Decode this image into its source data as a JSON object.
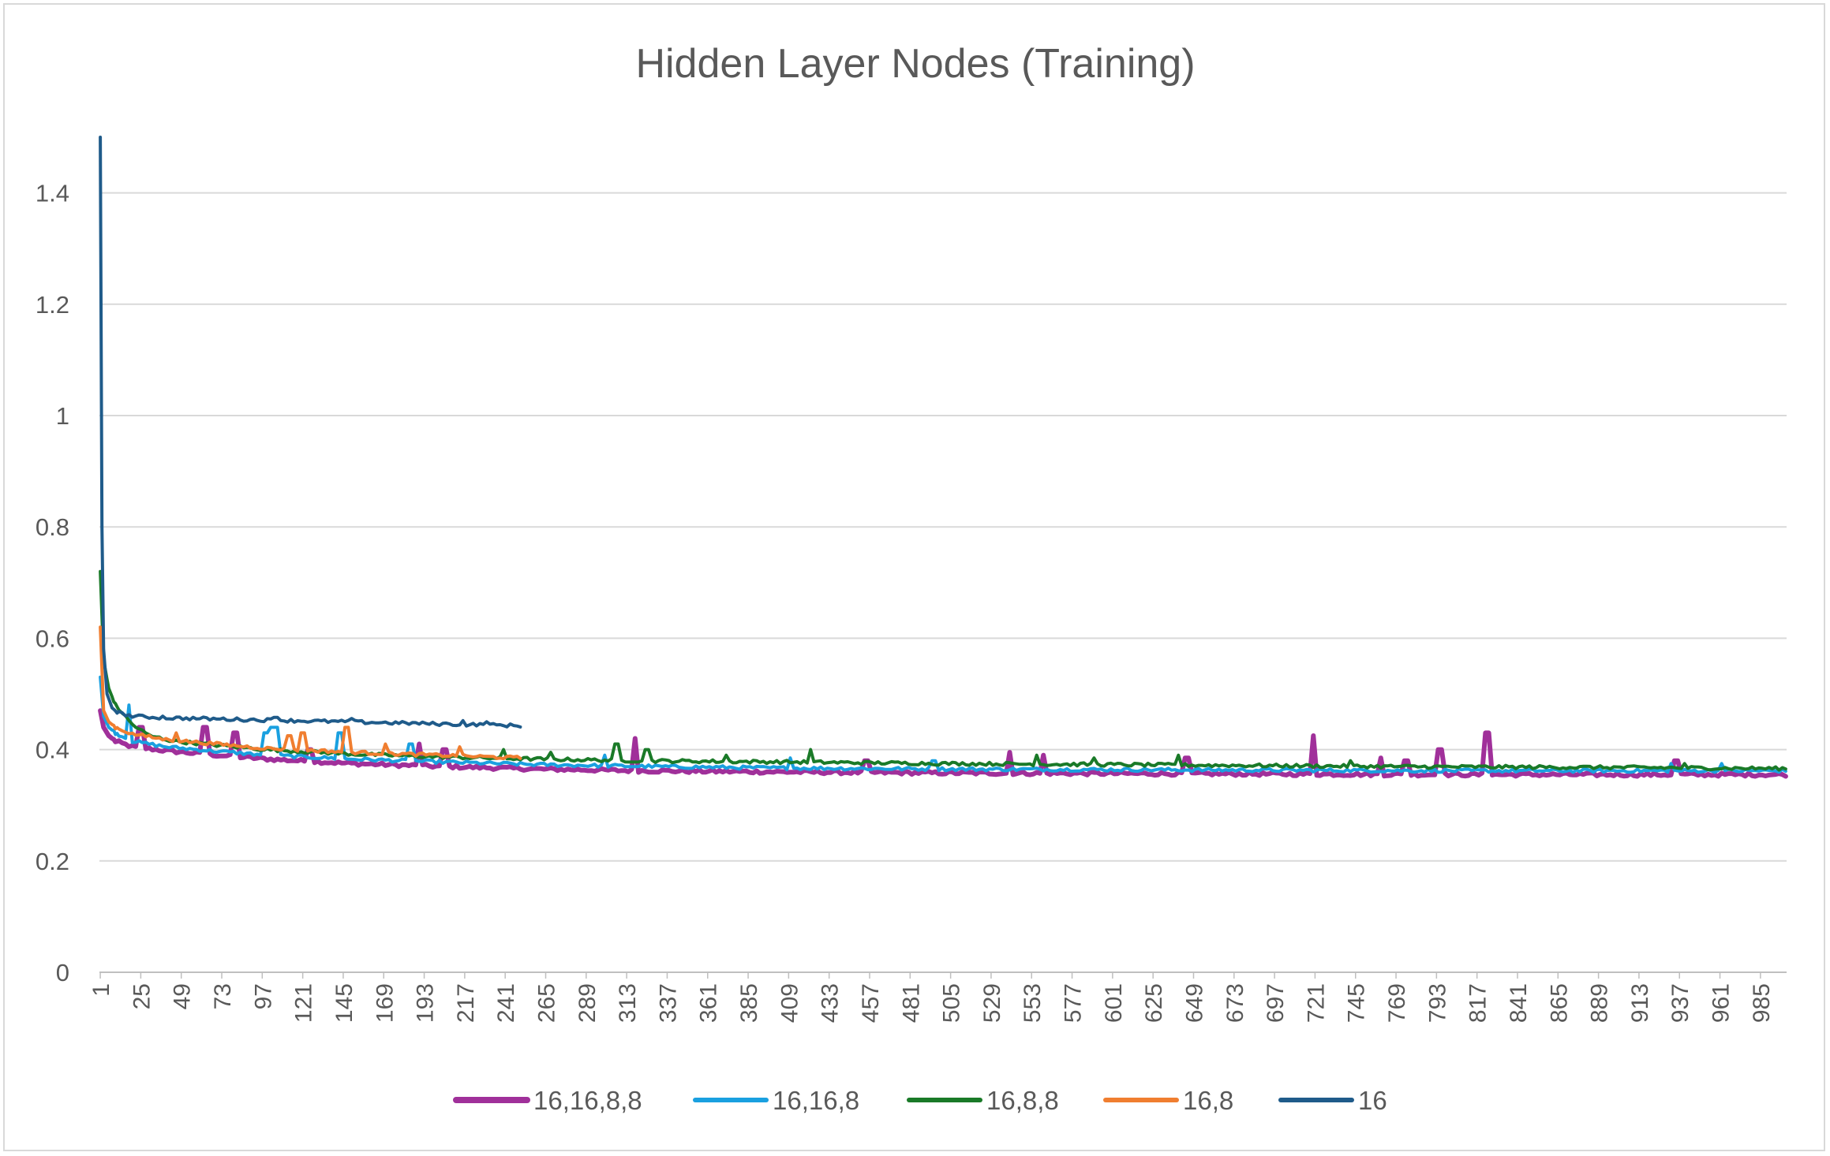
{
  "chart_data": {
    "type": "line",
    "title": "Hidden Layer Nodes (Training)",
    "xlabel": "",
    "ylabel": "",
    "ylim": [
      0,
      1.5
    ],
    "yticks": [
      0,
      0.2,
      0.4,
      0.6,
      0.8,
      1,
      1.2,
      1.4
    ],
    "ytick_labels": [
      "0",
      "0.2",
      "0.4",
      "0.6",
      "0.8",
      "1",
      "1.2",
      "1.4"
    ],
    "x_range": [
      1,
      1000
    ],
    "xtick_labels": [
      "1",
      "25",
      "49",
      "73",
      "97",
      "121",
      "145",
      "169",
      "193",
      "217",
      "241",
      "265",
      "289",
      "313",
      "337",
      "361",
      "385",
      "409",
      "433",
      "457",
      "481",
      "505",
      "529",
      "553",
      "577",
      "601",
      "625",
      "649",
      "673",
      "697",
      "721",
      "745",
      "769",
      "793",
      "817",
      "841",
      "865",
      "889",
      "913",
      "937",
      "961",
      "985"
    ],
    "grid": true,
    "legend_position": "bottom",
    "series": [
      {
        "name": "16,16,8,8",
        "color": "#a0309a",
        "stroke": 6,
        "x": [
          1,
          3,
          6,
          10,
          20,
          40,
          70,
          100,
          150,
          200,
          260,
          320,
          400,
          500,
          600,
          700,
          800,
          900,
          1000
        ],
        "y": [
          0.47,
          0.44,
          0.425,
          0.415,
          0.405,
          0.398,
          0.39,
          0.383,
          0.375,
          0.37,
          0.365,
          0.362,
          0.36,
          0.358,
          0.357,
          0.356,
          0.355,
          0.355,
          0.355
        ],
        "spikes": [
          [
            25,
            0.44
          ],
          [
            63,
            0.44
          ],
          [
            81,
            0.43
          ],
          [
            125,
            0.4
          ],
          [
            190,
            0.41
          ],
          [
            205,
            0.4
          ],
          [
            318,
            0.42
          ],
          [
            455,
            0.38
          ],
          [
            540,
            0.395
          ],
          [
            560,
            0.39
          ],
          [
            645,
            0.385
          ],
          [
            720,
            0.425
          ],
          [
            760,
            0.385
          ],
          [
            775,
            0.38
          ],
          [
            795,
            0.4
          ],
          [
            823,
            0.43
          ],
          [
            935,
            0.38
          ],
          [
            1003,
            0.41
          ]
        ]
      },
      {
        "name": "16,16,8",
        "color": "#1aa0e0",
        "stroke": 4,
        "x": [
          1,
          3,
          6,
          10,
          20,
          40,
          70,
          100,
          150,
          200,
          260,
          320,
          400,
          500,
          600,
          700,
          800,
          900,
          1000
        ],
        "y": [
          0.53,
          0.46,
          0.44,
          0.43,
          0.415,
          0.405,
          0.397,
          0.39,
          0.383,
          0.378,
          0.373,
          0.37,
          0.367,
          0.365,
          0.364,
          0.363,
          0.362,
          0.362,
          0.362
        ],
        "spikes": [
          [
            18,
            0.48
          ],
          [
            99,
            0.43
          ],
          [
            103,
            0.44
          ],
          [
            106,
            0.44
          ],
          [
            143,
            0.43
          ],
          [
            185,
            0.41
          ],
          [
            300,
            0.39
          ],
          [
            410,
            0.385
          ],
          [
            495,
            0.38
          ],
          [
            932,
            0.375
          ],
          [
            962,
            0.375
          ]
        ]
      },
      {
        "name": "16,8,8",
        "color": "#1a7a28",
        "stroke": 4,
        "x": [
          1,
          3,
          6,
          10,
          20,
          30,
          45,
          70,
          100,
          150,
          200,
          260,
          320,
          400,
          500,
          600,
          700,
          800,
          900,
          1000
        ],
        "y": [
          0.72,
          0.56,
          0.51,
          0.48,
          0.445,
          0.425,
          0.415,
          0.408,
          0.4,
          0.392,
          0.387,
          0.383,
          0.38,
          0.378,
          0.375,
          0.373,
          0.371,
          0.369,
          0.368,
          0.366
        ],
        "spikes": [
          [
            240,
            0.4
          ],
          [
            268,
            0.395
          ],
          [
            307,
            0.41
          ],
          [
            325,
            0.4
          ],
          [
            372,
            0.39
          ],
          [
            422,
            0.4
          ],
          [
            556,
            0.39
          ],
          [
            590,
            0.385
          ],
          [
            640,
            0.39
          ],
          [
            742,
            0.38
          ],
          [
            940,
            0.375
          ]
        ]
      },
      {
        "name": "16,8",
        "color": "#f07e30",
        "stroke": 4,
        "x": [
          1,
          3,
          6,
          10,
          20,
          40,
          70,
          100,
          130,
          160,
          190,
          220,
          250
        ],
        "y": [
          0.62,
          0.47,
          0.45,
          0.44,
          0.428,
          0.418,
          0.41,
          0.402,
          0.398,
          0.394,
          0.391,
          0.388,
          0.385
        ],
        "spikes": [
          [
            46,
            0.43
          ],
          [
            113,
            0.425
          ],
          [
            121,
            0.43
          ],
          [
            147,
            0.44
          ],
          [
            170,
            0.41
          ],
          [
            214,
            0.405
          ]
        ]
      },
      {
        "name": "16",
        "color": "#1f5b8a",
        "stroke": 4,
        "x": [
          1,
          2,
          3,
          5,
          8,
          12,
          20,
          40,
          70,
          100,
          130,
          160,
          190,
          220,
          250
        ],
        "y": [
          1.5,
          0.8,
          0.58,
          0.5,
          0.475,
          0.466,
          0.46,
          0.457,
          0.455,
          0.453,
          0.451,
          0.449,
          0.447,
          0.445,
          0.443
        ],
        "spikes": [
          [
            38,
            0.46
          ],
          [
            105,
            0.458
          ],
          [
            150,
            0.456
          ],
          [
            216,
            0.452
          ],
          [
            230,
            0.45
          ]
        ]
      }
    ]
  }
}
